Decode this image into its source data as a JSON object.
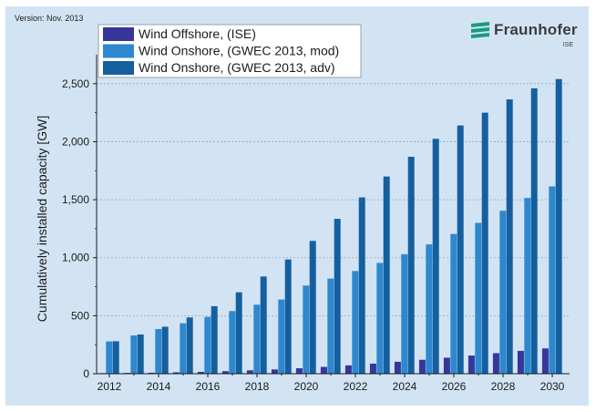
{
  "version_label": "Version: Nov. 2013",
  "logo": {
    "name": "Fraunhofer",
    "sub": "ISE",
    "color": "#179c7d"
  },
  "chart_data": {
    "type": "bar",
    "title": "",
    "xlabel": "",
    "ylabel": "Cumulatively installed capacity [GW]",
    "ylim": [
      0,
      2750
    ],
    "yticks": [
      0,
      500,
      1000,
      1500,
      2000,
      2500
    ],
    "ytick_labels": [
      "0",
      "500",
      "1,000",
      "1,500",
      "2,000",
      "2,500"
    ],
    "grid": true,
    "legend_position": "top-left",
    "categories": [
      2012,
      2013,
      2014,
      2015,
      2016,
      2017,
      2018,
      2019,
      2020,
      2021,
      2022,
      2023,
      2024,
      2025,
      2026,
      2027,
      2028,
      2029,
      2030
    ],
    "xtick_labels": [
      "2012",
      "2014",
      "2016",
      "2018",
      "2020",
      "2022",
      "2024",
      "2026",
      "2028",
      "2030"
    ],
    "series": [
      {
        "name": "Wind Offshore, (ISE)",
        "color": "#38359a",
        "values": [
          5,
          7,
          9,
          12,
          16,
          22,
          29,
          37,
          47,
          59,
          72,
          87,
          103,
          120,
          138,
          157,
          177,
          197,
          218
        ]
      },
      {
        "name": "Wind Onshore, (GWEC 2013, mod)",
        "color": "#2e88cf",
        "values": [
          278,
          330,
          385,
          435,
          490,
          540,
          595,
          640,
          760,
          820,
          885,
          955,
          1030,
          1115,
          1205,
          1300,
          1405,
          1515,
          1615
        ]
      },
      {
        "name": "Wind Onshore, (GWEC 2013, adv)",
        "color": "#155f9e",
        "values": [
          280,
          338,
          405,
          485,
          582,
          702,
          838,
          985,
          1145,
          1335,
          1520,
          1700,
          1870,
          2025,
          2140,
          2250,
          2365,
          2460,
          2540
        ]
      }
    ]
  }
}
